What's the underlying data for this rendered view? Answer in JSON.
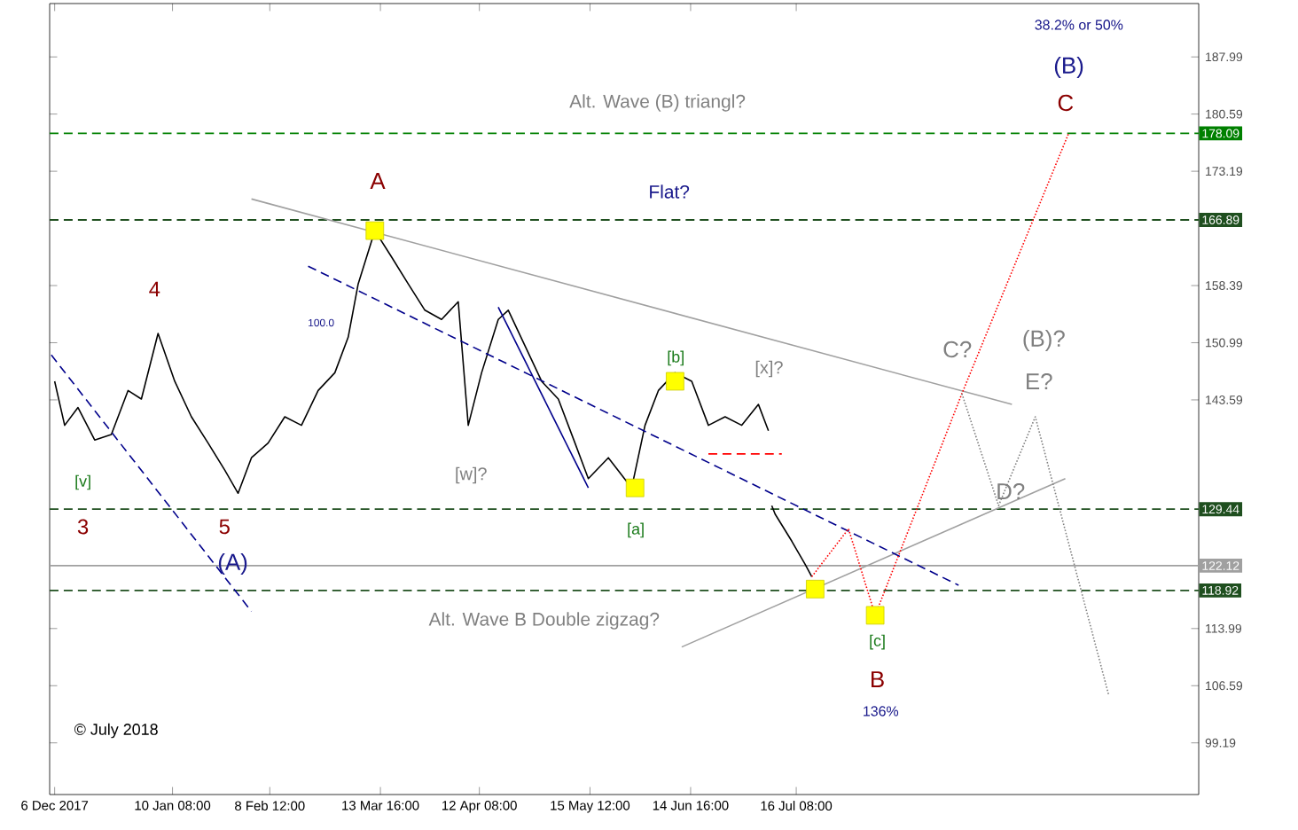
{
  "chart_data": {
    "type": "line",
    "xlim": [
      "2017-12-04T12:00",
      "2018-11-14"
    ],
    "ylim": [
      92.5,
      194.9
    ],
    "xticks": [
      {
        "value": "2017-12-06",
        "label": "6 Dec 2017"
      },
      {
        "value": "2018-01-10T08:00",
        "label": "10 Jan 08:00"
      },
      {
        "value": "2018-02-08T12:00",
        "label": "8 Feb 12:00"
      },
      {
        "value": "2018-03-13T16:00",
        "label": "13 Mar 16:00"
      },
      {
        "value": "2018-04-12T08:00",
        "label": "12 Apr 08:00"
      },
      {
        "value": "2018-05-15T12:00",
        "label": "15 May 12:00"
      },
      {
        "value": "2018-06-14T16:00",
        "label": "14 Jun 16:00"
      },
      {
        "value": "2018-07-16T08:00",
        "label": "16 Jul 08:00"
      }
    ],
    "yticks": [
      99.19,
      106.59,
      113.99,
      143.59,
      150.99,
      158.39,
      173.19,
      180.59,
      187.99
    ],
    "series": [
      {
        "color": "#000000",
        "line_style": "solid",
        "x": [
          "2017-12-06",
          "2017-12-09",
          "2017-12-13",
          "2017-12-18",
          "2017-12-23",
          "2017-12-28",
          "2018-01-01",
          "2018-01-06",
          "2018-01-11",
          "2018-01-16",
          "2018-01-21",
          "2018-01-26",
          "2018-01-30",
          "2018-02-03",
          "2018-02-08",
          "2018-02-13",
          "2018-02-18",
          "2018-02-23",
          "2018-02-28",
          "2018-03-04",
          "2018-03-07",
          "2018-03-12",
          "2018-03-17",
          "2018-03-22",
          "2018-03-27",
          "2018-04-01",
          "2018-04-06",
          "2018-04-09",
          "2018-04-13",
          "2018-04-18",
          "2018-04-21",
          "2018-04-26",
          "2018-05-01",
          "2018-05-06",
          "2018-05-11",
          "2018-05-15",
          "2018-05-21",
          "2018-05-28",
          "2018-06-01",
          "2018-06-05",
          "2018-06-10",
          "2018-06-15",
          "2018-06-20",
          "2018-06-25",
          "2018-06-30",
          "2018-07-05",
          "2018-07-08",
          "2018-07-08T12:00",
          "2018-07-09",
          "2018-07-10",
          "2018-07-15",
          "2018-07-19",
          "2018-07-21"
        ],
        "values": [
          146.0,
          140.3,
          142.6,
          138.4,
          139.1,
          144.8,
          143.7,
          152.2,
          146.0,
          141.4,
          138.0,
          134.5,
          131.5,
          136.1,
          138.0,
          141.4,
          140.3,
          144.8,
          147.1,
          151.7,
          158.6,
          165.5,
          162.1,
          158.6,
          155.2,
          154.0,
          156.3,
          140.3,
          147.1,
          154.0,
          155.2,
          150.6,
          146.0,
          143.7,
          138.0,
          133.4,
          136.1,
          132.2,
          140.3,
          144.8,
          147.1,
          146.0,
          140.3,
          141.4,
          140.3,
          143.0,
          139.6,
          null,
          129.9,
          128.8,
          125.3,
          122.3,
          120.7
        ]
      },
      {
        "type": "line",
        "color": "#a0a0a0",
        "line_style": "solid",
        "x": [
          "2018-02-03",
          "2018-09-19"
        ],
        "values": [
          169.6,
          143.0
        ]
      },
      {
        "type": "line",
        "color": "#a0a0a0",
        "line_style": "solid",
        "x": [
          "2018-06-12",
          "2018-10-05"
        ],
        "values": [
          111.6,
          133.4
        ]
      },
      {
        "type": "line",
        "color": "#00008b",
        "line_style": "dashed",
        "x": [
          "2018-02-20",
          "2018-09-03"
        ],
        "values": [
          160.9,
          119.6
        ]
      },
      {
        "type": "line",
        "color": "#00008b",
        "line_style": "dashed",
        "x": [
          "2017-12-05",
          "2018-02-03"
        ],
        "values": [
          149.4,
          116.2
        ]
      },
      {
        "type": "line",
        "color": "#00008b",
        "line_style": "solid",
        "x": [
          "2018-04-18",
          "2018-05-15"
        ],
        "values": [
          155.6,
          132.2
        ]
      },
      {
        "type": "line",
        "color": "#ff0000",
        "line_style": "dashed",
        "x": [
          "2018-06-20",
          "2018-07-12"
        ],
        "values": [
          136.6,
          136.6
        ]
      },
      {
        "type": "line",
        "color": "#ff0000",
        "line_style": "dotted",
        "x": [
          "2018-07-21",
          "2018-08-01",
          "2018-08-09",
          "2018-09-04",
          "2018-10-06"
        ],
        "values": [
          120.7,
          126.9,
          115.7,
          144.4,
          178.1
        ]
      },
      {
        "type": "line",
        "color": "#808080",
        "line_style": "dotted",
        "x": [
          "2018-09-04",
          "2018-09-15",
          "2018-09-26",
          "2018-10-18"
        ],
        "values": [
          144.4,
          129.9,
          141.4,
          105.4
        ]
      },
      {
        "type": "scatter",
        "color": "#ffff00",
        "marker": "square",
        "x": [
          "2018-03-12",
          "2018-05-29",
          "2018-06-10",
          "2018-07-22",
          "2018-08-09"
        ],
        "values": [
          165.5,
          132.2,
          146.0,
          119.1,
          115.7
        ]
      }
    ],
    "ref_lines": [
      {
        "axis": "y",
        "value": 178.09,
        "label": "178.09",
        "color": "#008000",
        "line_style": "dashed"
      },
      {
        "axis": "y",
        "value": 166.89,
        "label": "166.89",
        "color": "#1f4f1f",
        "line_style": "dashed"
      },
      {
        "axis": "y",
        "value": 129.44,
        "label": "129.44",
        "color": "#1f4f1f",
        "line_style": "dashed"
      },
      {
        "axis": "y",
        "value": 122.12,
        "label": "122.12",
        "color": "#a0a0a0",
        "line_style": "solid"
      },
      {
        "axis": "y",
        "value": 118.92,
        "label": "118.92",
        "color": "#1f4f1f",
        "line_style": "dashed"
      }
    ],
    "annotations": [
      "Alt. Wave (B) triangl?",
      "Flat?",
      "A",
      "4",
      "5",
      "3",
      "(A)",
      "[v]",
      "[w]?",
      "[a]",
      "[b]",
      "[x]?",
      "[c]",
      "B",
      "136%",
      "C?",
      "(B)?",
      "E?",
      "D?",
      "(B)",
      "C",
      "38.2% or 50%",
      "Alt. Wave B Double zigzag?",
      "100.0",
      "© July 2018"
    ]
  }
}
